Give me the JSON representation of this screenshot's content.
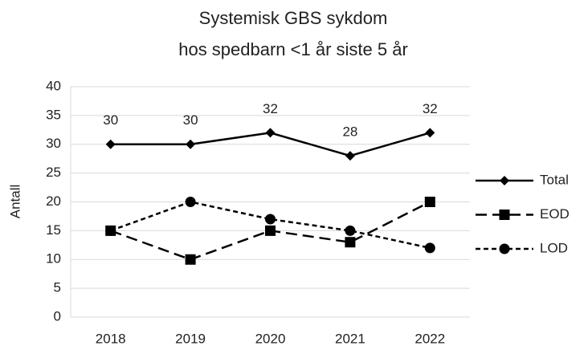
{
  "chart_data": {
    "type": "line",
    "title": [
      "Systemisk GBS sykdom",
      "hos spedbarn <1 år siste 5 år"
    ],
    "y_label": "Antall",
    "categories": [
      "2018",
      "2019",
      "2020",
      "2021",
      "2022"
    ],
    "series": [
      {
        "name": "Total",
        "color": "#000000",
        "dash": "solid",
        "marker": "diamond",
        "data_labels": true,
        "values": [
          30,
          30,
          32,
          28,
          32
        ]
      },
      {
        "name": "EOD",
        "color": "#000000",
        "dash": "long",
        "marker": "square",
        "data_labels": false,
        "values": [
          15,
          10,
          15,
          13,
          20
        ]
      },
      {
        "name": "LOD",
        "color": "#000000",
        "dash": "short",
        "marker": "circle",
        "data_labels": false,
        "values": [
          15,
          20,
          17,
          15,
          12
        ]
      }
    ],
    "ylim": [
      0,
      40
    ],
    "yticks": [
      0,
      5,
      10,
      15,
      20,
      25,
      30,
      35,
      40
    ],
    "grid": true,
    "legend": "right"
  }
}
